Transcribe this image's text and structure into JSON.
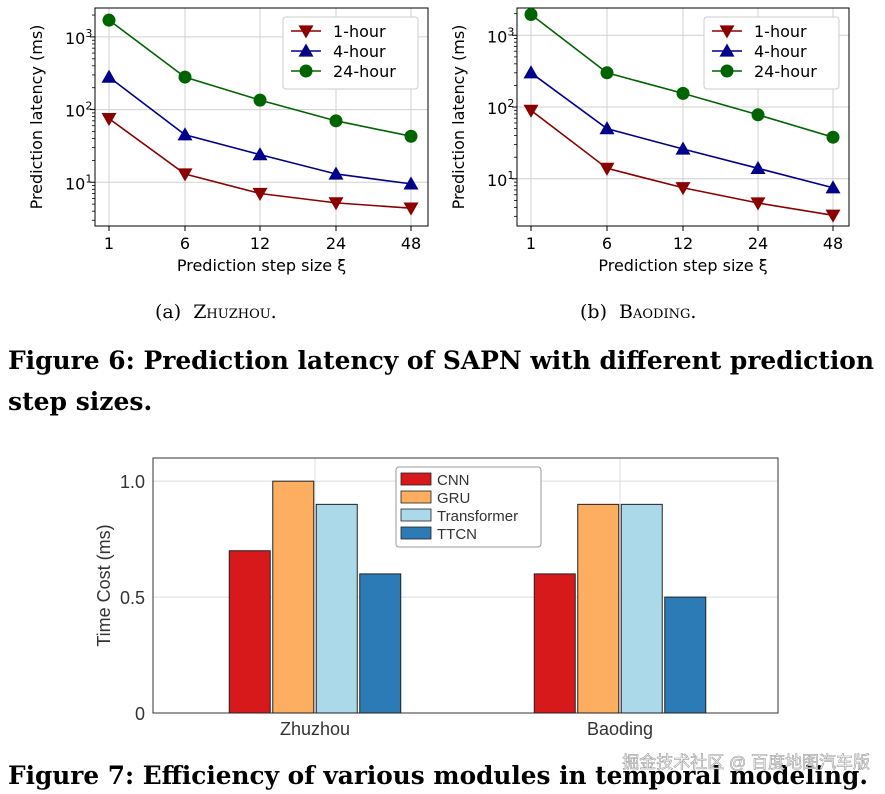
{
  "chart_data": [
    {
      "type": "line",
      "panel_caption_prefix": "(a)",
      "panel_caption_name": "Zhuzhou.",
      "xlabel": "Prediction step size ξ",
      "ylabel": "Prediction latency (ms)",
      "yscale": "log",
      "ylim": [
        2.5,
        2500
      ],
      "yticks": [
        "10",
        "10",
        "10"
      ],
      "ytick_exponents": [
        "1",
        "2",
        "3"
      ],
      "categories": [
        "1",
        "6",
        "12",
        "24",
        "48"
      ],
      "series": [
        {
          "name": "1-hour",
          "color": "#8b0000",
          "marker": "triangle-down",
          "values": [
            75,
            13,
            7,
            5.2,
            4.4
          ]
        },
        {
          "name": "4-hour",
          "color": "#00008b",
          "marker": "triangle-up",
          "values": [
            280,
            45,
            24,
            13,
            9.5
          ]
        },
        {
          "name": "24-hour",
          "color": "#006400",
          "marker": "circle",
          "values": [
            1700,
            280,
            135,
            70,
            43
          ]
        }
      ],
      "legend": "top-right",
      "grid": true
    },
    {
      "type": "line",
      "panel_caption_prefix": "(b)",
      "panel_caption_name": "Baoding.",
      "xlabel": "Prediction step size ξ",
      "ylabel": "Prediction latency (ms)",
      "yscale": "log",
      "ylim": [
        2.2,
        2400
      ],
      "yticks": [
        "10",
        "10",
        "10"
      ],
      "ytick_exponents": [
        "1",
        "2",
        "3"
      ],
      "categories": [
        "1",
        "6",
        "12",
        "24",
        "48"
      ],
      "series": [
        {
          "name": "1-hour",
          "color": "#8b0000",
          "marker": "triangle-down",
          "values": [
            90,
            14,
            7.5,
            4.6,
            3.1
          ]
        },
        {
          "name": "4-hour",
          "color": "#00008b",
          "marker": "triangle-up",
          "values": [
            300,
            50,
            26,
            14,
            7.5
          ]
        },
        {
          "name": "24-hour",
          "color": "#006400",
          "marker": "circle",
          "values": [
            1950,
            300,
            155,
            78,
            38
          ]
        }
      ],
      "legend": "top-right",
      "grid": true
    },
    {
      "type": "bar",
      "ylabel": "Time Cost (ms)",
      "ylim": [
        0,
        1.1
      ],
      "yticks": [
        "0",
        "0.5",
        "1.0"
      ],
      "categories": [
        "Zhuzhou",
        "Baoding"
      ],
      "series": [
        {
          "name": "CNN",
          "color": "#d7191c",
          "values": [
            0.7,
            0.6
          ]
        },
        {
          "name": "GRU",
          "color": "#fdae61",
          "values": [
            1.0,
            0.9
          ]
        },
        {
          "name": "Transformer",
          "color": "#abd9e9",
          "values": [
            0.9,
            0.9
          ]
        },
        {
          "name": "TTCN",
          "color": "#2c7bb6",
          "values": [
            0.6,
            0.5
          ]
        }
      ],
      "legend": "top-center",
      "grid": true
    }
  ],
  "captions": {
    "fig6_line1": "Figure 6: Prediction latency of SAPN with different prediction",
    "fig6_line2": "step sizes.",
    "fig7": "Figure 7: Efficiency of various modules in temporal modeling."
  },
  "watermark": "掘金技术社区 @ 百度地图汽车版"
}
